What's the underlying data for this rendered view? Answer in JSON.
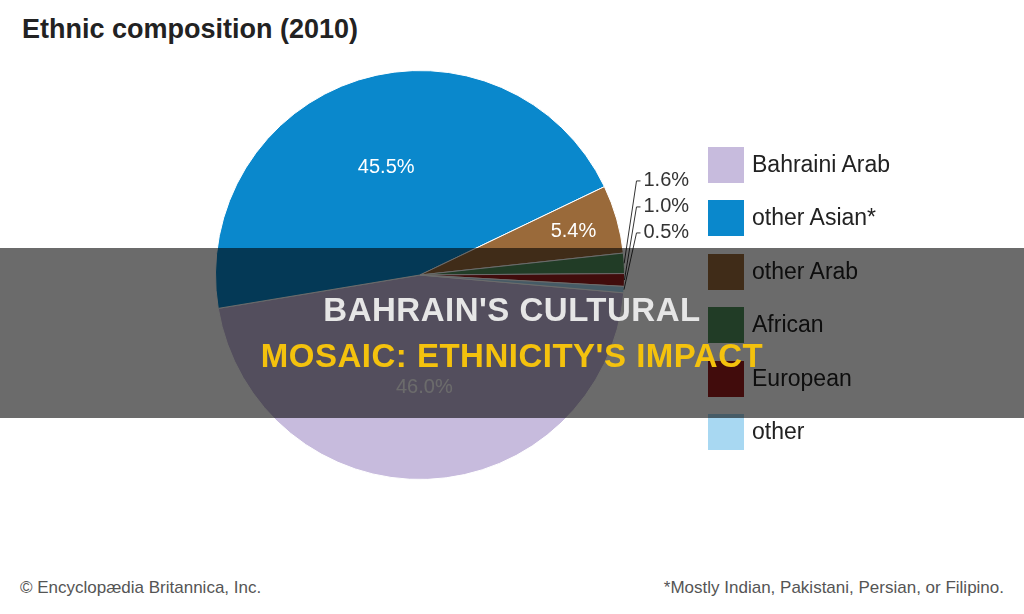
{
  "chart_data": {
    "type": "pie",
    "title": "Ethnic composition (2010)",
    "categories": [
      "Bahraini Arab",
      "other Asian*",
      "other Arab",
      "African",
      "European",
      "other"
    ],
    "values": [
      46.0,
      45.5,
      5.4,
      1.6,
      1.0,
      0.5
    ],
    "value_labels": [
      "46.0%",
      "45.5%",
      "5.4%",
      "1.6%",
      "1.0%",
      "0.5%"
    ],
    "colors": [
      "#c7bbdd",
      "#0a88cc",
      "#9a6a3a",
      "#4f8f5c",
      "#9b1d1d",
      "#a8d8f2"
    ],
    "data_labels": true,
    "legend": "right",
    "annotations": [
      "BAHRAIN'S CULTURAL",
      "MOSAIC: ETHNICITY'S IMPACT"
    ],
    "source": "© Encyclopædia Britannica, Inc.",
    "note": "*Mostly Indian, Pakistani, Persian, or Filipino."
  }
}
